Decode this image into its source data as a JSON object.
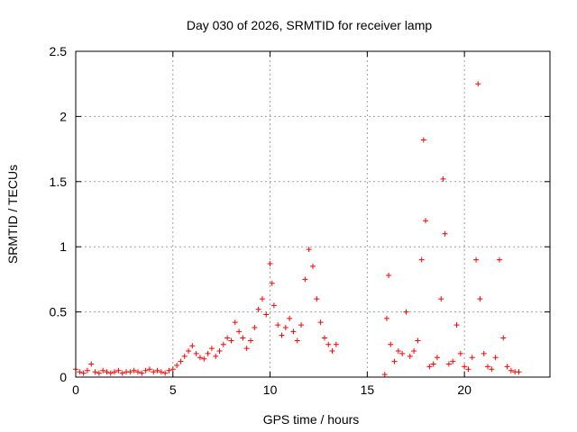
{
  "chart_data": {
    "type": "scatter",
    "title": "Day 030 of 2026, SRMTID for receiver lamp",
    "xlabel": "GPS time / hours",
    "ylabel": "SRMTID / TECUs",
    "xlim": [
      0,
      24.4
    ],
    "ylim": [
      0,
      2.5
    ],
    "xticks": [
      0,
      5,
      10,
      15,
      20
    ],
    "xtick_labels": [
      "0",
      "5",
      "10",
      "15",
      "20"
    ],
    "yticks": [
      0,
      0.5,
      1,
      1.5,
      2,
      2.5
    ],
    "ytick_labels": [
      "0",
      "0.5",
      "1",
      "1.5",
      "2",
      "2.5"
    ],
    "grid": true,
    "marker": "+",
    "color": "#ff0000",
    "series": [
      {
        "name": "SRMTID",
        "x": [
          0.0,
          0.2,
          0.4,
          0.6,
          0.8,
          1.0,
          1.2,
          1.4,
          1.6,
          1.8,
          2.0,
          2.2,
          2.4,
          2.6,
          2.8,
          3.0,
          3.2,
          3.4,
          3.6,
          3.8,
          4.0,
          4.2,
          4.4,
          4.6,
          4.8,
          5.0,
          5.2,
          5.4,
          5.6,
          5.8,
          6.0,
          6.2,
          6.4,
          6.6,
          6.8,
          7.0,
          7.2,
          7.4,
          7.6,
          7.8,
          8.0,
          8.2,
          8.4,
          8.6,
          8.8,
          9.0,
          9.2,
          9.4,
          9.6,
          9.8,
          10.0,
          10.1,
          10.2,
          10.4,
          10.6,
          10.8,
          11.0,
          11.2,
          11.4,
          11.6,
          11.8,
          12.0,
          12.2,
          12.4,
          12.6,
          12.8,
          13.0,
          13.2,
          13.4,
          15.9,
          16.0,
          16.1,
          16.2,
          16.4,
          16.6,
          16.8,
          17.0,
          17.2,
          17.4,
          17.6,
          17.8,
          17.9,
          18.0,
          18.2,
          18.4,
          18.6,
          18.8,
          18.9,
          19.0,
          19.2,
          19.4,
          19.6,
          19.8,
          20.0,
          20.2,
          20.4,
          20.6,
          20.7,
          20.8,
          21.0,
          21.2,
          21.4,
          21.6,
          21.8,
          22.0,
          22.2,
          22.4,
          22.6,
          22.8
        ],
        "values": [
          0.06,
          0.04,
          0.03,
          0.05,
          0.1,
          0.04,
          0.03,
          0.05,
          0.04,
          0.03,
          0.04,
          0.05,
          0.03,
          0.04,
          0.04,
          0.05,
          0.04,
          0.03,
          0.05,
          0.06,
          0.04,
          0.05,
          0.04,
          0.03,
          0.05,
          0.06,
          0.09,
          0.12,
          0.16,
          0.2,
          0.24,
          0.18,
          0.15,
          0.14,
          0.18,
          0.22,
          0.16,
          0.2,
          0.25,
          0.3,
          0.28,
          0.42,
          0.35,
          0.3,
          0.22,
          0.28,
          0.38,
          0.52,
          0.6,
          0.48,
          0.87,
          0.72,
          0.55,
          0.4,
          0.32,
          0.38,
          0.45,
          0.35,
          0.28,
          0.4,
          0.75,
          0.98,
          0.85,
          0.6,
          0.42,
          0.3,
          0.25,
          0.2,
          0.25,
          0.02,
          0.45,
          0.78,
          0.25,
          0.12,
          0.2,
          0.18,
          0.5,
          0.16,
          0.2,
          0.28,
          0.9,
          1.82,
          1.2,
          0.08,
          0.1,
          0.15,
          0.6,
          1.52,
          1.1,
          0.1,
          0.12,
          0.4,
          0.18,
          0.08,
          0.06,
          0.15,
          0.9,
          2.25,
          0.6,
          0.18,
          0.08,
          0.06,
          0.15,
          0.9,
          0.3,
          0.08,
          0.05,
          0.04,
          0.04
        ]
      }
    ]
  }
}
